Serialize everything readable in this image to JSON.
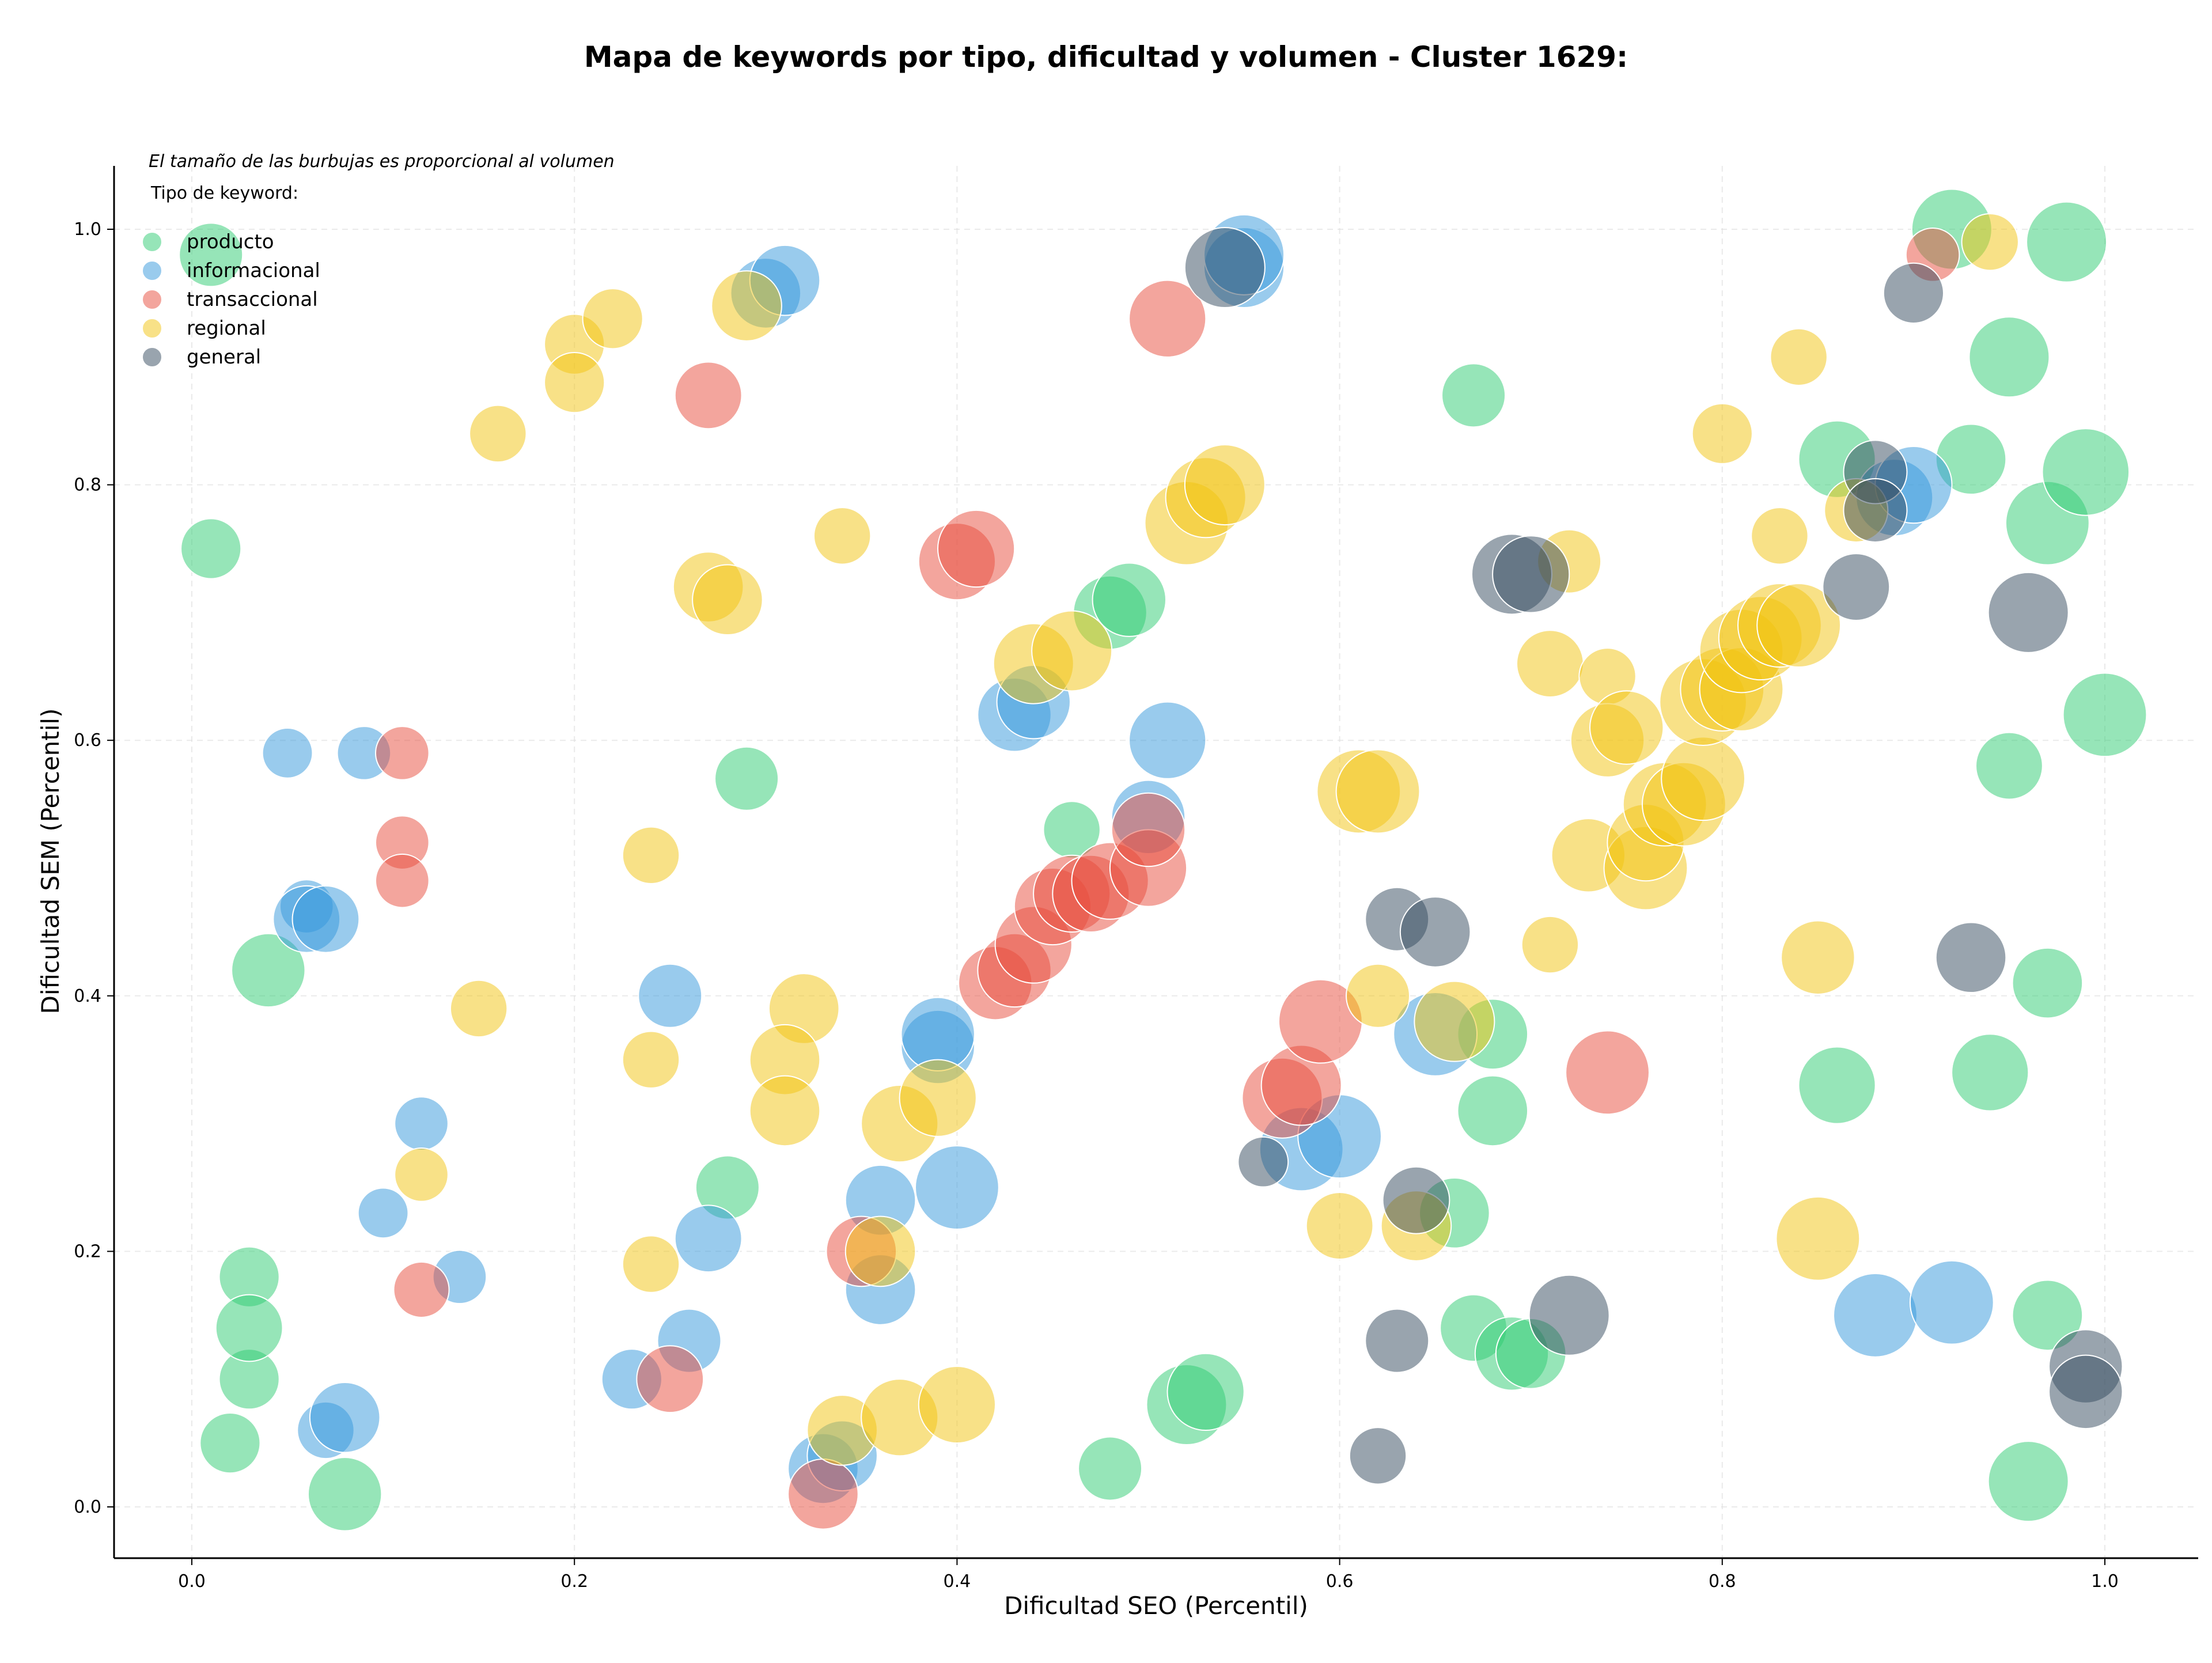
{
  "chart_data": {
    "type": "scatter",
    "title": "Mapa de keywords por tipo, dificultad y volumen - Cluster 1629:",
    "xlabel": "Dificultad SEO (Percentil)",
    "ylabel": "Dificultad SEM (Percentil)",
    "xlim": [
      -0.04,
      1.05
    ],
    "ylim": [
      -0.04,
      1.05
    ],
    "xticks": [
      "0.0",
      "0.2",
      "0.4",
      "0.6",
      "0.8",
      "1.0"
    ],
    "yticks": [
      "0.0",
      "0.2",
      "0.4",
      "0.6",
      "0.8",
      "1.0"
    ],
    "grid": true,
    "size_note": "El tamaño de las burbujas es proporcional al volumen",
    "legend_title": "Tipo de keyword:",
    "legend_position": "top-left",
    "series": [
      {
        "name": "producto",
        "color": "#2ecc71",
        "points": [
          [
            0.01,
            0.98,
            0.5
          ],
          [
            0.01,
            0.75,
            0.45
          ],
          [
            0.04,
            0.42,
            0.65
          ],
          [
            0.03,
            0.18,
            0.45
          ],
          [
            0.03,
            0.1,
            0.45
          ],
          [
            0.03,
            0.14,
            0.55
          ],
          [
            0.02,
            0.05,
            0.45
          ],
          [
            0.08,
            0.01,
            0.65
          ],
          [
            0.29,
            0.57,
            0.5
          ],
          [
            0.28,
            0.25,
            0.5
          ],
          [
            0.46,
            0.53,
            0.4
          ],
          [
            0.48,
            0.7,
            0.65
          ],
          [
            0.49,
            0.71,
            0.65
          ],
          [
            0.48,
            0.03,
            0.5
          ],
          [
            0.52,
            0.08,
            0.75
          ],
          [
            0.53,
            0.09,
            0.7
          ],
          [
            0.67,
            0.87,
            0.5
          ],
          [
            0.68,
            0.37,
            0.6
          ],
          [
            0.68,
            0.31,
            0.6
          ],
          [
            0.66,
            0.23,
            0.6
          ],
          [
            0.67,
            0.14,
            0.55
          ],
          [
            0.69,
            0.12,
            0.65
          ],
          [
            0.7,
            0.12,
            0.6
          ],
          [
            0.86,
            0.82,
            0.7
          ],
          [
            0.86,
            0.33,
            0.7
          ],
          [
            0.92,
            1.0,
            0.75
          ],
          [
            0.93,
            0.82,
            0.6
          ],
          [
            0.95,
            0.9,
            0.75
          ],
          [
            0.95,
            0.58,
            0.55
          ],
          [
            0.94,
            0.34,
            0.7
          ],
          [
            0.97,
            0.15,
            0.6
          ],
          [
            0.96,
            0.02,
            0.75
          ],
          [
            0.97,
            0.77,
            0.8
          ],
          [
            0.98,
            0.99,
            0.75
          ],
          [
            0.99,
            0.81,
            0.85
          ],
          [
            0.97,
            0.41,
            0.6
          ],
          [
            1.0,
            0.62,
            0.8
          ]
        ]
      },
      {
        "name": "informacional",
        "color": "#3498db",
        "points": [
          [
            0.05,
            0.59,
            0.3
          ],
          [
            0.09,
            0.59,
            0.35
          ],
          [
            0.06,
            0.47,
            0.35
          ],
          [
            0.06,
            0.46,
            0.55
          ],
          [
            0.07,
            0.46,
            0.55
          ],
          [
            0.12,
            0.3,
            0.35
          ],
          [
            0.1,
            0.23,
            0.3
          ],
          [
            0.14,
            0.18,
            0.35
          ],
          [
            0.07,
            0.06,
            0.4
          ],
          [
            0.08,
            0.07,
            0.6
          ],
          [
            0.25,
            0.4,
            0.5
          ],
          [
            0.27,
            0.21,
            0.55
          ],
          [
            0.26,
            0.13,
            0.5
          ],
          [
            0.23,
            0.1,
            0.45
          ],
          [
            0.3,
            0.95,
            0.6
          ],
          [
            0.31,
            0.96,
            0.6
          ],
          [
            0.36,
            0.24,
            0.6
          ],
          [
            0.36,
            0.17,
            0.6
          ],
          [
            0.39,
            0.36,
            0.65
          ],
          [
            0.39,
            0.37,
            0.65
          ],
          [
            0.4,
            0.25,
            0.8
          ],
          [
            0.33,
            0.03,
            0.6
          ],
          [
            0.34,
            0.04,
            0.6
          ],
          [
            0.43,
            0.62,
            0.65
          ],
          [
            0.44,
            0.63,
            0.65
          ],
          [
            0.5,
            0.54,
            0.65
          ],
          [
            0.51,
            0.6,
            0.7
          ],
          [
            0.55,
            0.97,
            0.75
          ],
          [
            0.55,
            0.98,
            0.75
          ],
          [
            0.58,
            0.28,
            0.8
          ],
          [
            0.6,
            0.29,
            0.8
          ],
          [
            0.65,
            0.37,
            0.8
          ],
          [
            0.89,
            0.79,
            0.7
          ],
          [
            0.9,
            0.8,
            0.7
          ],
          [
            0.88,
            0.15,
            0.8
          ],
          [
            0.92,
            0.16,
            0.8
          ]
        ]
      },
      {
        "name": "transaccional",
        "color": "#e74c3c",
        "points": [
          [
            0.11,
            0.59,
            0.35
          ],
          [
            0.11,
            0.52,
            0.35
          ],
          [
            0.11,
            0.49,
            0.35
          ],
          [
            0.12,
            0.17,
            0.38
          ],
          [
            0.27,
            0.87,
            0.55
          ],
          [
            0.25,
            0.1,
            0.55
          ],
          [
            0.33,
            0.01,
            0.6
          ],
          [
            0.35,
            0.2,
            0.6
          ],
          [
            0.4,
            0.74,
            0.7
          ],
          [
            0.41,
            0.75,
            0.7
          ],
          [
            0.42,
            0.41,
            0.65
          ],
          [
            0.43,
            0.42,
            0.65
          ],
          [
            0.44,
            0.44,
            0.7
          ],
          [
            0.45,
            0.47,
            0.7
          ],
          [
            0.46,
            0.48,
            0.7
          ],
          [
            0.47,
            0.48,
            0.7
          ],
          [
            0.48,
            0.49,
            0.7
          ],
          [
            0.5,
            0.5,
            0.7
          ],
          [
            0.5,
            0.53,
            0.65
          ],
          [
            0.51,
            0.93,
            0.7
          ],
          [
            0.57,
            0.32,
            0.75
          ],
          [
            0.58,
            0.33,
            0.75
          ],
          [
            0.59,
            0.38,
            0.8
          ],
          [
            0.74,
            0.34,
            0.8
          ],
          [
            0.91,
            0.98,
            0.35
          ]
        ]
      },
      {
        "name": "regional",
        "color": "#f1c40f",
        "points": [
          [
            0.16,
            0.84,
            0.4
          ],
          [
            0.2,
            0.91,
            0.45
          ],
          [
            0.2,
            0.88,
            0.45
          ],
          [
            0.22,
            0.93,
            0.45
          ],
          [
            0.15,
            0.39,
            0.4
          ],
          [
            0.12,
            0.26,
            0.35
          ],
          [
            0.24,
            0.51,
            0.4
          ],
          [
            0.24,
            0.35,
            0.4
          ],
          [
            0.24,
            0.19,
            0.4
          ],
          [
            0.27,
            0.72,
            0.6
          ],
          [
            0.28,
            0.71,
            0.6
          ],
          [
            0.29,
            0.94,
            0.6
          ],
          [
            0.34,
            0.76,
            0.4
          ],
          [
            0.32,
            0.39,
            0.6
          ],
          [
            0.31,
            0.35,
            0.6
          ],
          [
            0.31,
            0.31,
            0.6
          ],
          [
            0.34,
            0.06,
            0.6
          ],
          [
            0.36,
            0.2,
            0.6
          ],
          [
            0.37,
            0.3,
            0.7
          ],
          [
            0.39,
            0.32,
            0.7
          ],
          [
            0.37,
            0.07,
            0.7
          ],
          [
            0.4,
            0.08,
            0.7
          ],
          [
            0.44,
            0.66,
            0.75
          ],
          [
            0.46,
            0.67,
            0.75
          ],
          [
            0.52,
            0.77,
            0.8
          ],
          [
            0.53,
            0.79,
            0.75
          ],
          [
            0.54,
            0.8,
            0.75
          ],
          [
            0.61,
            0.56,
            0.8
          ],
          [
            0.62,
            0.56,
            0.8
          ],
          [
            0.62,
            0.4,
            0.5
          ],
          [
            0.6,
            0.22,
            0.55
          ],
          [
            0.64,
            0.22,
            0.6
          ],
          [
            0.66,
            0.38,
            0.75
          ],
          [
            0.71,
            0.44,
            0.4
          ],
          [
            0.71,
            0.66,
            0.55
          ],
          [
            0.72,
            0.74,
            0.5
          ],
          [
            0.74,
            0.65,
            0.4
          ],
          [
            0.73,
            0.51,
            0.65
          ],
          [
            0.74,
            0.6,
            0.65
          ],
          [
            0.75,
            0.61,
            0.65
          ],
          [
            0.76,
            0.5,
            0.8
          ],
          [
            0.76,
            0.52,
            0.7
          ],
          [
            0.77,
            0.55,
            0.8
          ],
          [
            0.78,
            0.55,
            0.8
          ],
          [
            0.79,
            0.57,
            0.8
          ],
          [
            0.79,
            0.63,
            0.85
          ],
          [
            0.8,
            0.64,
            0.8
          ],
          [
            0.81,
            0.64,
            0.8
          ],
          [
            0.8,
            0.84,
            0.45
          ],
          [
            0.81,
            0.67,
            0.8
          ],
          [
            0.82,
            0.68,
            0.8
          ],
          [
            0.83,
            0.69,
            0.8
          ],
          [
            0.84,
            0.69,
            0.8
          ],
          [
            0.83,
            0.76,
            0.4
          ],
          [
            0.84,
            0.9,
            0.4
          ],
          [
            0.85,
            0.43,
            0.65
          ],
          [
            0.85,
            0.21,
            0.8
          ],
          [
            0.87,
            0.78,
            0.5
          ],
          [
            0.94,
            0.99,
            0.4
          ]
        ]
      },
      {
        "name": "general",
        "color": "#34495e",
        "points": [
          [
            0.54,
            0.97,
            0.75
          ],
          [
            0.56,
            0.27,
            0.3
          ],
          [
            0.62,
            0.04,
            0.4
          ],
          [
            0.63,
            0.46,
            0.5
          ],
          [
            0.63,
            0.13,
            0.5
          ],
          [
            0.64,
            0.24,
            0.55
          ],
          [
            0.65,
            0.45,
            0.6
          ],
          [
            0.69,
            0.73,
            0.75
          ],
          [
            0.7,
            0.73,
            0.7
          ],
          [
            0.72,
            0.15,
            0.75
          ],
          [
            0.87,
            0.72,
            0.55
          ],
          [
            0.88,
            0.81,
            0.5
          ],
          [
            0.88,
            0.78,
            0.5
          ],
          [
            0.9,
            0.95,
            0.45
          ],
          [
            0.93,
            0.43,
            0.6
          ],
          [
            0.96,
            0.7,
            0.75
          ],
          [
            0.99,
            0.11,
            0.65
          ],
          [
            0.99,
            0.09,
            0.65
          ]
        ]
      }
    ]
  }
}
